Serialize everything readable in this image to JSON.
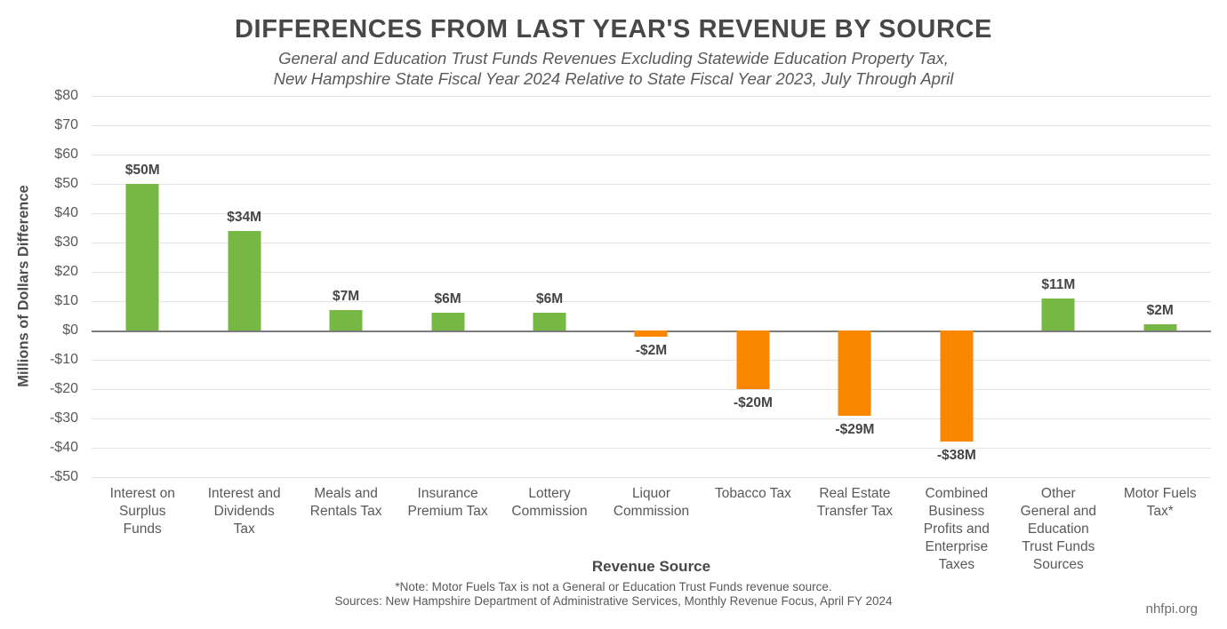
{
  "header": {
    "title": "DIFFERENCES FROM LAST YEAR'S REVENUE BY SOURCE",
    "subtitle_line1": "General and Education Trust Funds Revenues Excluding Statewide Education Property Tax,",
    "subtitle_line2": "New Hampshire State Fiscal Year 2024 Relative to State Fiscal Year 2023, July Through April"
  },
  "chart_data": {
    "type": "bar",
    "title": "DIFFERENCES FROM LAST YEAR'S REVENUE BY SOURCE",
    "subtitle": "General and Education Trust Funds Revenues Excluding Statewide Education Property Tax, New Hampshire State Fiscal Year 2024 Relative to State Fiscal Year 2023, July Through April",
    "xlabel": "Revenue Source",
    "ylabel": "Millions of Dollars Difference",
    "ylim": [
      -50,
      80
    ],
    "ytick_interval": 10,
    "grid": "horizontal",
    "legend": "none",
    "yticks": [
      {
        "value": 80,
        "label": "$80"
      },
      {
        "value": 70,
        "label": "$70"
      },
      {
        "value": 60,
        "label": "$60"
      },
      {
        "value": 50,
        "label": "$50"
      },
      {
        "value": 40,
        "label": "$40"
      },
      {
        "value": 30,
        "label": "$30"
      },
      {
        "value": 20,
        "label": "$20"
      },
      {
        "value": 10,
        "label": "$10"
      },
      {
        "value": 0,
        "label": "$0"
      },
      {
        "value": -10,
        "label": "-$10"
      },
      {
        "value": -20,
        "label": "-$20"
      },
      {
        "value": -30,
        "label": "-$30"
      },
      {
        "value": -40,
        "label": "-$40"
      },
      {
        "value": -50,
        "label": "-$50"
      }
    ],
    "categories": [
      "Interest on Surplus Funds",
      "Interest and Dividends Tax",
      "Meals and Rentals Tax",
      "Insurance Premium Tax",
      "Lottery Commission",
      "Liquor Commission",
      "Tobacco Tax",
      "Real Estate Transfer Tax",
      "Combined Business Profits and Enterprise Taxes",
      "Other General and Education Trust Funds Sources",
      "Motor Fuels Tax*"
    ],
    "values": [
      50,
      34,
      7,
      6,
      6,
      -2,
      -20,
      -29,
      -38,
      11,
      2
    ],
    "bar_labels": [
      "$50M",
      "$34M",
      "$7M",
      "$6M",
      "$6M",
      "-$2M",
      "-$20M",
      "-$29M",
      "-$38M",
      "$11M",
      "$2M"
    ],
    "positive_color": "#76B843",
    "negative_color": "#FB8600"
  },
  "footer": {
    "note": "*Note: Motor Fuels Tax is not a General or Education Trust Funds revenue source.",
    "sources": "Sources: New Hampshire Department of Administrative Services, Monthly Revenue Focus, April FY 2024",
    "website": "nhfpi.org"
  }
}
